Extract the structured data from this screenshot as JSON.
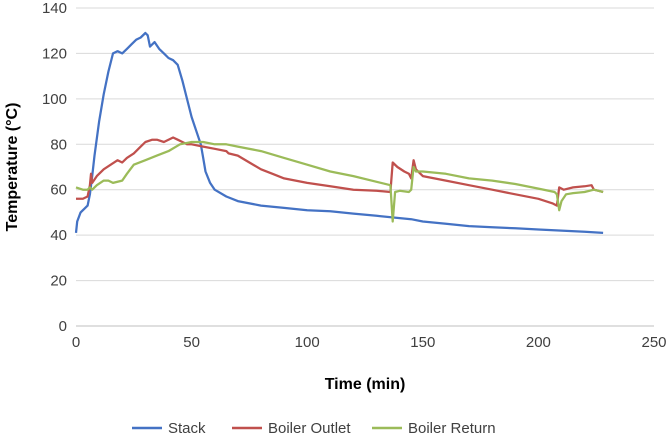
{
  "chart_data": {
    "type": "line",
    "title": "",
    "xlabel": "Time (min)",
    "ylabel": "Temperature (°C)",
    "xlim": [
      0,
      250
    ],
    "ylim": [
      0,
      140
    ],
    "xticks": [
      "0",
      "50",
      "100",
      "150",
      "200",
      "250"
    ],
    "yticks": [
      "0",
      "20",
      "40",
      "60",
      "80",
      "100",
      "120",
      "140"
    ],
    "grid": "horizontal",
    "legend": "bottom",
    "series": [
      {
        "name": "Stack",
        "color": "#4472C4",
        "points": [
          [
            0,
            41
          ],
          [
            0.5,
            46
          ],
          [
            2,
            50
          ],
          [
            4,
            52
          ],
          [
            5,
            53
          ],
          [
            6,
            58
          ],
          [
            7,
            66
          ],
          [
            8,
            75
          ],
          [
            10,
            90
          ],
          [
            12,
            102
          ],
          [
            14,
            112
          ],
          [
            16,
            120
          ],
          [
            18,
            121
          ],
          [
            20,
            120
          ],
          [
            22,
            122
          ],
          [
            24,
            124
          ],
          [
            26,
            126
          ],
          [
            28,
            127
          ],
          [
            30,
            129
          ],
          [
            31,
            128
          ],
          [
            32,
            123
          ],
          [
            34,
            125
          ],
          [
            36,
            122
          ],
          [
            38,
            120
          ],
          [
            40,
            118
          ],
          [
            42,
            117
          ],
          [
            44,
            115
          ],
          [
            46,
            108
          ],
          [
            48,
            100
          ],
          [
            50,
            92
          ],
          [
            52,
            86
          ],
          [
            54,
            80
          ],
          [
            55,
            74
          ],
          [
            56,
            68
          ],
          [
            58,
            63
          ],
          [
            60,
            60
          ],
          [
            65,
            57
          ],
          [
            70,
            55
          ],
          [
            80,
            53
          ],
          [
            90,
            52
          ],
          [
            100,
            51
          ],
          [
            110,
            50.5
          ],
          [
            120,
            49.5
          ],
          [
            130,
            48.5
          ],
          [
            140,
            47.5
          ],
          [
            145,
            47
          ],
          [
            150,
            46
          ],
          [
            160,
            45
          ],
          [
            170,
            44
          ],
          [
            180,
            43.5
          ],
          [
            190,
            43
          ],
          [
            200,
            42.5
          ],
          [
            210,
            42
          ],
          [
            220,
            41.5
          ],
          [
            228,
            41
          ]
        ]
      },
      {
        "name": "Boiler Outlet",
        "color": "#C0504D",
        "points": [
          [
            0,
            56
          ],
          [
            3,
            56
          ],
          [
            5,
            57
          ],
          [
            6,
            62
          ],
          [
            6.5,
            67
          ],
          [
            7,
            63
          ],
          [
            9,
            66
          ],
          [
            12,
            69
          ],
          [
            15,
            71
          ],
          [
            18,
            73
          ],
          [
            20,
            72
          ],
          [
            22,
            74
          ],
          [
            25,
            76
          ],
          [
            28,
            79
          ],
          [
            30,
            81
          ],
          [
            33,
            82
          ],
          [
            35,
            82
          ],
          [
            38,
            81
          ],
          [
            40,
            82
          ],
          [
            42,
            83
          ],
          [
            44,
            82
          ],
          [
            46,
            81
          ],
          [
            48,
            80
          ],
          [
            50,
            80
          ],
          [
            55,
            79
          ],
          [
            60,
            78
          ],
          [
            65,
            77
          ],
          [
            66,
            76
          ],
          [
            70,
            75
          ],
          [
            75,
            72
          ],
          [
            80,
            69
          ],
          [
            85,
            67
          ],
          [
            90,
            65
          ],
          [
            100,
            63
          ],
          [
            110,
            61.5
          ],
          [
            120,
            60
          ],
          [
            130,
            59.5
          ],
          [
            136,
            59
          ],
          [
            137,
            72
          ],
          [
            139,
            70
          ],
          [
            142,
            68
          ],
          [
            144,
            67
          ],
          [
            145,
            65
          ],
          [
            146,
            73
          ],
          [
            147,
            69
          ],
          [
            150,
            66
          ],
          [
            155,
            65
          ],
          [
            160,
            64
          ],
          [
            170,
            62
          ],
          [
            180,
            60
          ],
          [
            190,
            58
          ],
          [
            200,
            56
          ],
          [
            206,
            54
          ],
          [
            208,
            53
          ],
          [
            209,
            61
          ],
          [
            211,
            60
          ],
          [
            215,
            61
          ],
          [
            220,
            61.5
          ],
          [
            223,
            62
          ],
          [
            224,
            60
          ],
          [
            226,
            59.5
          ],
          [
            228,
            59
          ]
        ]
      },
      {
        "name": "Boiler Return",
        "color": "#9BBB59",
        "points": [
          [
            0,
            61
          ],
          [
            3,
            60
          ],
          [
            5,
            60
          ],
          [
            6,
            61
          ],
          [
            7,
            60
          ],
          [
            9,
            62
          ],
          [
            12,
            64
          ],
          [
            14,
            64
          ],
          [
            16,
            63
          ],
          [
            20,
            64
          ],
          [
            22,
            67
          ],
          [
            25,
            71
          ],
          [
            30,
            73
          ],
          [
            35,
            75
          ],
          [
            40,
            77
          ],
          [
            45,
            80
          ],
          [
            50,
            81
          ],
          [
            55,
            81
          ],
          [
            60,
            80
          ],
          [
            65,
            80
          ],
          [
            70,
            79
          ],
          [
            80,
            77
          ],
          [
            90,
            74
          ],
          [
            100,
            71
          ],
          [
            110,
            68
          ],
          [
            120,
            66
          ],
          [
            130,
            63.5
          ],
          [
            136,
            62
          ],
          [
            137,
            46
          ],
          [
            138,
            59
          ],
          [
            140,
            59.5
          ],
          [
            144,
            59
          ],
          [
            145,
            60
          ],
          [
            146,
            70
          ],
          [
            147,
            68
          ],
          [
            150,
            68
          ],
          [
            160,
            67
          ],
          [
            170,
            65
          ],
          [
            180,
            64
          ],
          [
            190,
            62.5
          ],
          [
            200,
            60.5
          ],
          [
            207,
            59
          ],
          [
            208,
            58
          ],
          [
            209,
            51
          ],
          [
            210,
            55
          ],
          [
            212,
            58
          ],
          [
            215,
            58.5
          ],
          [
            220,
            59
          ],
          [
            224,
            60
          ],
          [
            226,
            59.5
          ],
          [
            228,
            59
          ]
        ]
      }
    ]
  }
}
